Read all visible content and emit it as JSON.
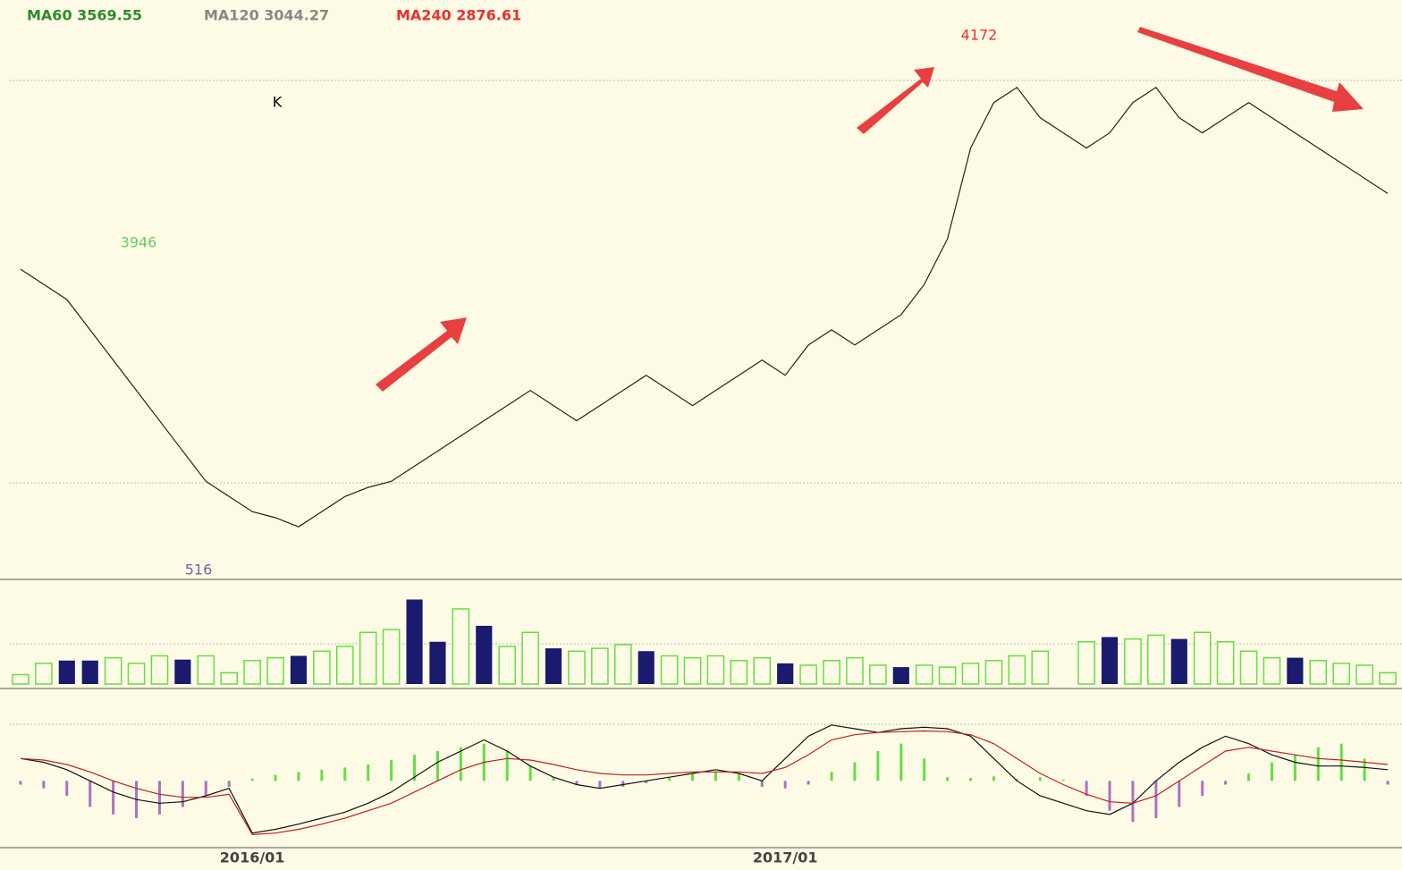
{
  "chart_data": [
    {
      "type": "line",
      "color": "#222222",
      "ma_labels": [
        {
          "text": "MA60 3569.55",
          "color": "#2e8b2e"
        },
        {
          "text": "MA120 3044.27",
          "color": "#888888"
        },
        {
          "text": "MA240 2876.61",
          "color": "#e83030"
        }
      ],
      "annotations": [
        {
          "text": "4172",
          "color": "#e83030"
        },
        {
          "text": "3946",
          "color": "#66cc66"
        },
        {
          "text": "516",
          "color": "#8060a0"
        },
        {
          "text": "K",
          "color": "#000000"
        }
      ],
      "values": [
        3500,
        3450,
        3400,
        3300,
        3200,
        3100,
        3000,
        2900,
        2800,
        2750,
        2700,
        2680,
        2650,
        2700,
        2750,
        2780,
        2800,
        2850,
        2900,
        2950,
        3000,
        3050,
        3100,
        3050,
        3000,
        3050,
        3100,
        3150,
        3100,
        3050,
        3100,
        3150,
        3200,
        3150,
        3250,
        3300,
        3250,
        3300,
        3350,
        3450,
        3600,
        3900,
        4050,
        4100,
        4000,
        3950,
        3900,
        3950,
        4050,
        4100,
        4000,
        3950,
        4000,
        4050,
        4000,
        3950,
        3900,
        3850,
        3800,
        3750
      ],
      "ylim": [
        2500,
        4300
      ]
    },
    {
      "type": "bar",
      "ylim": [
        0,
        100
      ],
      "series": [
        {
          "color": "#1a1a6e",
          "values": [
            null,
            null,
            25,
            25,
            null,
            null,
            null,
            26,
            null,
            null,
            null,
            null,
            30,
            null,
            null,
            null,
            null,
            90,
            45,
            null,
            62,
            null,
            null,
            38,
            null,
            null,
            null,
            35,
            null,
            null,
            null,
            null,
            null,
            22,
            null,
            null,
            null,
            null,
            18,
            null,
            null,
            null,
            null,
            null,
            35,
            null,
            null,
            50,
            null,
            null,
            48,
            null,
            null,
            null,
            null,
            28,
            null,
            null,
            null,
            null
          ]
        },
        {
          "color": "#66dd44",
          "values": [
            10,
            22,
            null,
            null,
            28,
            22,
            30,
            null,
            30,
            12,
            25,
            28,
            null,
            35,
            40,
            55,
            58,
            null,
            null,
            80,
            null,
            40,
            55,
            null,
            35,
            38,
            42,
            null,
            30,
            28,
            30,
            25,
            28,
            null,
            20,
            25,
            28,
            20,
            null,
            20,
            18,
            22,
            25,
            30,
            35,
            null,
            45,
            null,
            48,
            52,
            null,
            55,
            45,
            35,
            28,
            null,
            25,
            22,
            20,
            12
          ]
        }
      ]
    },
    {
      "type": "macd",
      "ylim": [
        -80,
        100
      ],
      "pos_color": "#66dd44",
      "neg_color": "#b070c0",
      "categories": [
        null,
        null,
        null,
        null,
        null,
        null,
        null,
        null,
        null,
        null,
        "2016/01",
        null,
        null,
        null,
        null,
        null,
        null,
        null,
        null,
        null,
        null,
        null,
        null,
        null,
        null,
        null,
        null,
        null,
        null,
        null,
        null,
        null,
        null,
        "2017/01",
        null,
        null,
        null,
        null,
        null,
        null,
        null,
        null,
        null,
        null,
        null,
        null,
        null,
        null,
        null,
        null,
        null,
        null,
        null,
        null,
        null,
        null,
        null,
        null,
        null,
        null
      ],
      "values": [
        -5,
        -10,
        -20,
        -35,
        -45,
        -50,
        -45,
        -35,
        -20,
        -8,
        3,
        8,
        12,
        15,
        18,
        22,
        28,
        35,
        40,
        45,
        50,
        40,
        20,
        5,
        -5,
        -10,
        -8,
        -3,
        4,
        10,
        12,
        10,
        -8,
        -10,
        -5,
        12,
        25,
        40,
        50,
        30,
        5,
        4,
        6,
        3,
        5,
        2,
        -20,
        -40,
        -55,
        -50,
        -35,
        -20,
        -5,
        10,
        25,
        35,
        45,
        50,
        30,
        -5
      ],
      "series": [
        {
          "color": "#111111",
          "values": [
            30,
            25,
            15,
            0,
            -15,
            -25,
            -30,
            -28,
            -20,
            -10,
            -70,
            -65,
            -58,
            -50,
            -42,
            -30,
            -15,
            5,
            25,
            40,
            55,
            40,
            20,
            5,
            -5,
            -10,
            -5,
            0,
            5,
            10,
            15,
            10,
            0,
            30,
            60,
            75,
            70,
            65,
            70,
            72,
            70,
            60,
            30,
            0,
            -20,
            -30,
            -40,
            -45,
            -30,
            0,
            25,
            45,
            60,
            50,
            35,
            25,
            20,
            20,
            18,
            15
          ]
        },
        {
          "color": "#c02020",
          "values": [
            30,
            28,
            22,
            12,
            0,
            -10,
            -18,
            -22,
            -22,
            -18,
            -72,
            -70,
            -65,
            -58,
            -50,
            -40,
            -30,
            -15,
            0,
            15,
            25,
            30,
            28,
            22,
            15,
            10,
            8,
            8,
            10,
            12,
            12,
            12,
            10,
            18,
            35,
            55,
            62,
            65,
            66,
            67,
            66,
            62,
            50,
            30,
            10,
            -5,
            -18,
            -28,
            -30,
            -20,
            0,
            20,
            40,
            45,
            40,
            35,
            30,
            28,
            25,
            22
          ]
        }
      ]
    }
  ]
}
